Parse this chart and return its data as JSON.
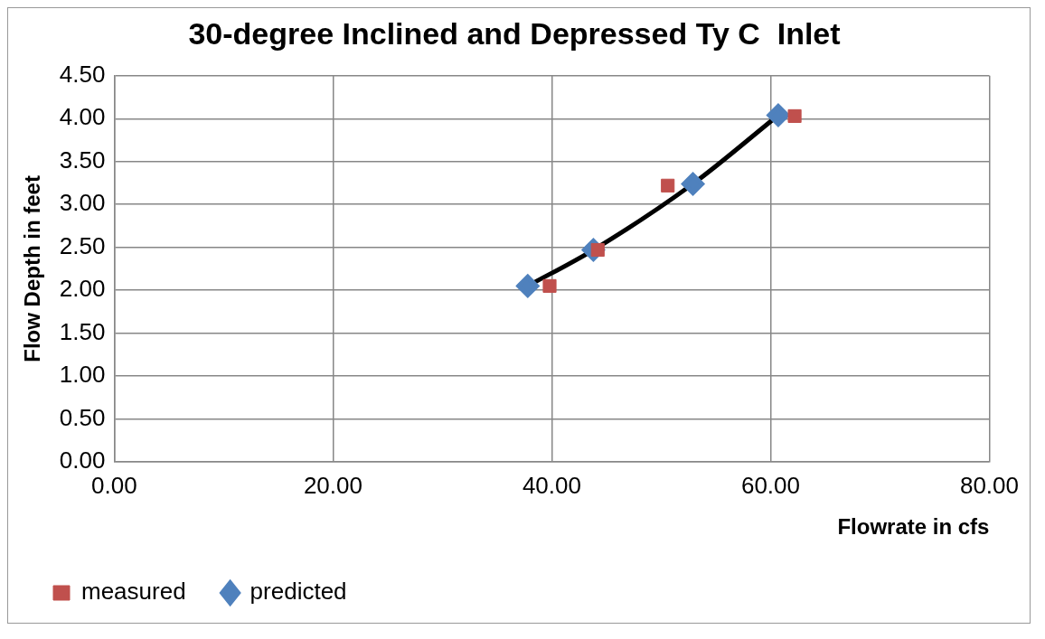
{
  "chart_data": {
    "type": "scatter",
    "title": "30-degree Inclined and Depressed Ty C  Inlet",
    "xlabel": "Flowrate in cfs",
    "ylabel": "Flow Depth in feet",
    "xlim": [
      0,
      80
    ],
    "xticks": [
      {
        "value": 0,
        "label": "0.00"
      },
      {
        "value": 20,
        "label": "20.00"
      },
      {
        "value": 40,
        "label": "40.00"
      },
      {
        "value": 60,
        "label": "60.00"
      },
      {
        "value": 80,
        "label": "80.00"
      }
    ],
    "ylim": [
      0,
      4.5
    ],
    "yticks": [
      {
        "value": 0,
        "label": "0.00"
      },
      {
        "value": 0.5,
        "label": "0.50"
      },
      {
        "value": 1,
        "label": "1.00"
      },
      {
        "value": 1.5,
        "label": "1.50"
      },
      {
        "value": 2,
        "label": "2.00"
      },
      {
        "value": 2.5,
        "label": "2.50"
      },
      {
        "value": 3,
        "label": "3.00"
      },
      {
        "value": 3.5,
        "label": "3.50"
      },
      {
        "value": 4,
        "label": "4.00"
      },
      {
        "value": 4.5,
        "label": "4.50"
      }
    ],
    "grid": true,
    "legend": "bottom left",
    "series": [
      {
        "type": "line",
        "name": "predicted",
        "color": "#000000",
        "colors": [
          "#4f81bd",
          "#4f81bd",
          "#4f81bd",
          "#4f81bd"
        ],
        "marker": "diamond",
        "line_style": "solid",
        "x": [
          37.8,
          43.8,
          52.9,
          60.7
        ],
        "values": [
          2.05,
          2.47,
          3.24,
          4.04
        ]
      },
      {
        "name": "measured",
        "color": "#c0504d",
        "marker": "square",
        "x": [
          39.8,
          44.2,
          50.6,
          62.2
        ],
        "values": [
          2.05,
          2.47,
          3.22,
          4.03
        ]
      }
    ]
  }
}
